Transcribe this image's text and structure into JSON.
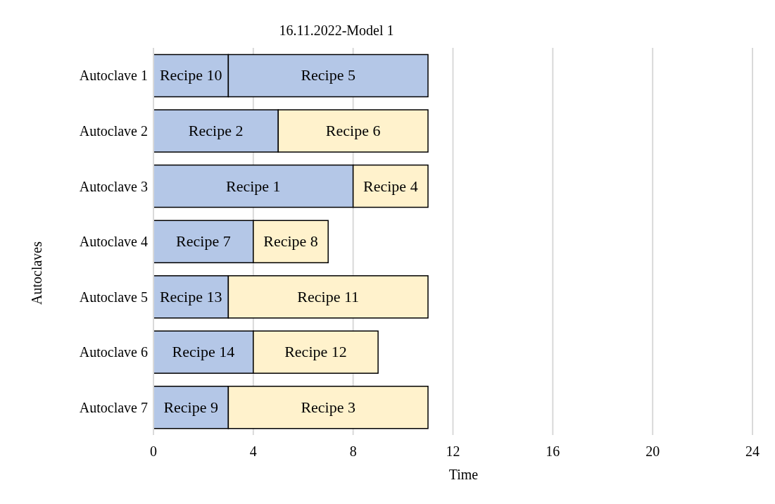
{
  "chart_data": {
    "type": "bar",
    "orientation": "horizontal",
    "stacked": true,
    "title": "16.11.2022-Model 1",
    "xlabel": "Time",
    "ylabel": "Autoclaves",
    "categories": [
      "Autoclave 1",
      "Autoclave 2",
      "Autoclave 3",
      "Autoclave 4",
      "Autoclave 5",
      "Autoclave 6",
      "Autoclave 7"
    ],
    "series": [
      {
        "colors": [
          "#b4c7e7",
          "#b4c7e7",
          "#b4c7e7",
          "#b4c7e7",
          "#b4c7e7",
          "#b4c7e7",
          "#b4c7e7"
        ],
        "values": [
          3,
          5,
          8,
          4,
          3,
          4,
          3
        ],
        "value_labels": [
          "Recipe 10",
          "Recipe 2",
          "Recipe 1",
          "Recipe 7",
          "Recipe 13",
          "Recipe 14",
          "Recipe 9"
        ]
      },
      {
        "colors": [
          "#b4c7e7",
          "#fff2cc",
          "#fff2cc",
          "#fff2cc",
          "#fff2cc",
          "#fff2cc",
          "#fff2cc"
        ],
        "values": [
          8,
          6,
          3,
          3,
          8,
          5,
          8
        ],
        "value_labels": [
          "Recipe 5",
          "Recipe 6",
          "Recipe 4",
          "Recipe 8",
          "Recipe 11",
          "Recipe 12",
          "Recipe 3"
        ]
      }
    ],
    "xlim": [
      0,
      24
    ],
    "xticks": [
      0,
      4,
      8,
      12,
      16,
      20,
      24
    ],
    "grid": "x"
  }
}
